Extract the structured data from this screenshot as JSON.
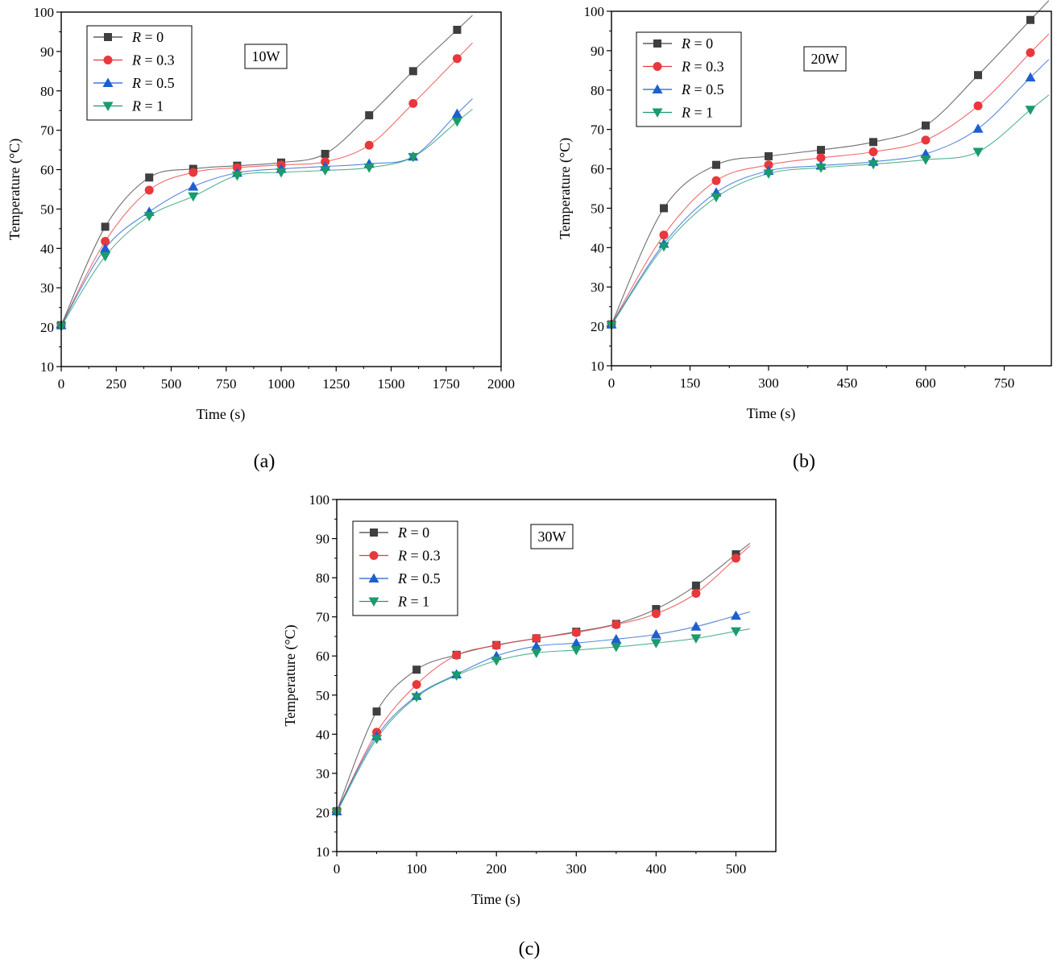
{
  "chart_data": [
    {
      "type": "line",
      "panel_label": "(a)",
      "annotation": "10W",
      "xlabel": "Time (s)",
      "ylabel": "Temperature (°C)",
      "xlim": [
        0,
        2000
      ],
      "ylim": [
        10,
        100
      ],
      "xticks": [
        0,
        250,
        500,
        750,
        1000,
        1250,
        1500,
        1750,
        2000
      ],
      "yticks": [
        10,
        20,
        30,
        40,
        50,
        60,
        70,
        80,
        90,
        100
      ],
      "legend_position": "top-left",
      "x": [
        0,
        200,
        400,
        600,
        800,
        1000,
        1200,
        1400,
        1600,
        1800
      ],
      "series": [
        {
          "name": "R = 0",
          "var": "R",
          "rest": " = 0",
          "marker": "square",
          "color": "#3f3f3f",
          "values": [
            20.5,
            45.5,
            58,
            60.2,
            61,
            61.8,
            64,
            73.8,
            85,
            95.5
          ]
        },
        {
          "name": "R = 0.3",
          "var": "R",
          "rest": " = 0.3",
          "marker": "circle",
          "color": "#e8383d",
          "values": [
            20.5,
            41.8,
            54.8,
            59.3,
            60.5,
            61.2,
            62,
            66.2,
            76.8,
            88.2
          ]
        },
        {
          "name": "R = 0.5",
          "var": "R",
          "rest": " = 0.5",
          "marker": "triangle-up",
          "color": "#1e5fcf",
          "values": [
            20.5,
            40,
            49.3,
            55.7,
            59.2,
            60.2,
            60.8,
            61.5,
            63.3,
            74.2
          ]
        },
        {
          "name": "R = 1",
          "var": "R",
          "rest": " = 1",
          "marker": "triangle-down",
          "color": "#1a9b6b",
          "values": [
            20.2,
            38,
            48.2,
            53.2,
            58.5,
            59.3,
            59.8,
            60.5,
            63.2,
            72.2
          ]
        }
      ]
    },
    {
      "type": "line",
      "panel_label": "(b)",
      "annotation": "20W",
      "xlabel": "Time (s)",
      "ylabel": "Temperature (°C)",
      "xlim": [
        0,
        840
      ],
      "ylim": [
        10,
        100
      ],
      "xticks": [
        0,
        150,
        300,
        450,
        600,
        750
      ],
      "yticks": [
        10,
        20,
        30,
        40,
        50,
        60,
        70,
        80,
        90,
        100
      ],
      "legend_position": "top-left",
      "x": [
        0,
        100,
        200,
        300,
        400,
        500,
        600,
        700,
        800
      ],
      "series": [
        {
          "name": "R = 0",
          "var": "R",
          "rest": " = 0",
          "marker": "square",
          "color": "#3f3f3f",
          "values": [
            20.5,
            50,
            61,
            63.2,
            64.8,
            66.8,
            71,
            83.8,
            97.8
          ]
        },
        {
          "name": "R = 0.3",
          "var": "R",
          "rest": " = 0.3",
          "marker": "circle",
          "color": "#e8383d",
          "values": [
            20.5,
            43.2,
            57,
            61,
            62.8,
            64.3,
            67.3,
            76,
            89.5
          ]
        },
        {
          "name": "R = 0.5",
          "var": "R",
          "rest": " = 0.5",
          "marker": "triangle-up",
          "color": "#1e5fcf",
          "values": [
            20.5,
            41,
            54,
            59.5,
            60.8,
            61.8,
            63.8,
            70.2,
            83.2
          ]
        },
        {
          "name": "R = 1",
          "var": "R",
          "rest": " = 1",
          "marker": "triangle-down",
          "color": "#1a9b6b",
          "values": [
            20.3,
            40.3,
            52.8,
            58.8,
            60.3,
            61.2,
            62.3,
            64.3,
            75
          ]
        }
      ]
    },
    {
      "type": "line",
      "panel_label": "(c)",
      "annotation": "30W",
      "xlabel": "Time (s)",
      "ylabel": "Temperature (°C)",
      "xlim": [
        0,
        550
      ],
      "ylim": [
        10,
        100
      ],
      "xticks": [
        0,
        100,
        200,
        300,
        400,
        500
      ],
      "yticks": [
        10,
        20,
        30,
        40,
        50,
        60,
        70,
        80,
        90,
        100
      ],
      "legend_position": "top-left",
      "x": [
        0,
        50,
        100,
        150,
        200,
        250,
        300,
        350,
        400,
        450,
        500
      ],
      "series": [
        {
          "name": "R = 0",
          "var": "R",
          "rest": " = 0",
          "marker": "square",
          "color": "#3f3f3f",
          "values": [
            20.3,
            45.8,
            56.5,
            60.3,
            62.8,
            64.5,
            66.2,
            68.2,
            72,
            78,
            86
          ]
        },
        {
          "name": "R = 0.3",
          "var": "R",
          "rest": " = 0.3",
          "marker": "circle",
          "color": "#e8383d",
          "values": [
            20.3,
            40.5,
            52.7,
            60.2,
            62.7,
            64.5,
            66,
            68,
            70.8,
            76,
            85
          ]
        },
        {
          "name": "R = 0.5",
          "var": "R",
          "rest": " = 0.5",
          "marker": "triangle-up",
          "color": "#1e5fcf",
          "values": [
            20.3,
            39.5,
            49.8,
            55.3,
            60,
            62.5,
            63.3,
            64.3,
            65.5,
            67.5,
            70.3
          ]
        },
        {
          "name": "R = 1",
          "var": "R",
          "rest": " = 1",
          "marker": "triangle-down",
          "color": "#1a9b6b",
          "values": [
            20,
            38.8,
            49.5,
            55,
            58.8,
            60.8,
            61.5,
            62.3,
            63.3,
            64.5,
            66.3
          ]
        }
      ]
    }
  ]
}
